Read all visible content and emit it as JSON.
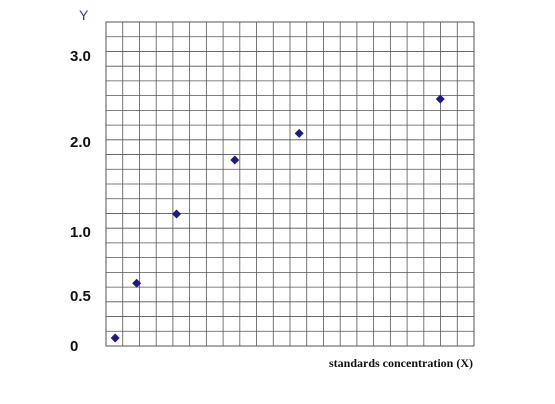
{
  "chart_data": {
    "type": "scatter",
    "y_axis_letter": "Y",
    "xlabel": "standards concentration (X)",
    "y_ticks": [
      {
        "value": 3.0,
        "label": "3.0"
      },
      {
        "value": 2.0,
        "label": "2.0"
      },
      {
        "value": 1.0,
        "label": "1.0"
      },
      {
        "value": 0.5,
        "label": "0.5"
      },
      {
        "value": 0,
        "label": "0"
      }
    ],
    "ylim": [
      0,
      3.2
    ],
    "xlim": [
      0,
      12
    ],
    "grid": true,
    "marker": "diamond",
    "colors": {
      "marker": "#1a1a8c",
      "grid": "#555555",
      "axis_letter": "#2e3f9e"
    },
    "points": [
      {
        "x": 0.3,
        "y": 0.08
      },
      {
        "x": 1.0,
        "y": 0.6
      },
      {
        "x": 2.3,
        "y": 1.2
      },
      {
        "x": 4.2,
        "y": 1.8
      },
      {
        "x": 6.3,
        "y": 2.1
      },
      {
        "x": 10.9,
        "y": 2.5
      }
    ]
  }
}
